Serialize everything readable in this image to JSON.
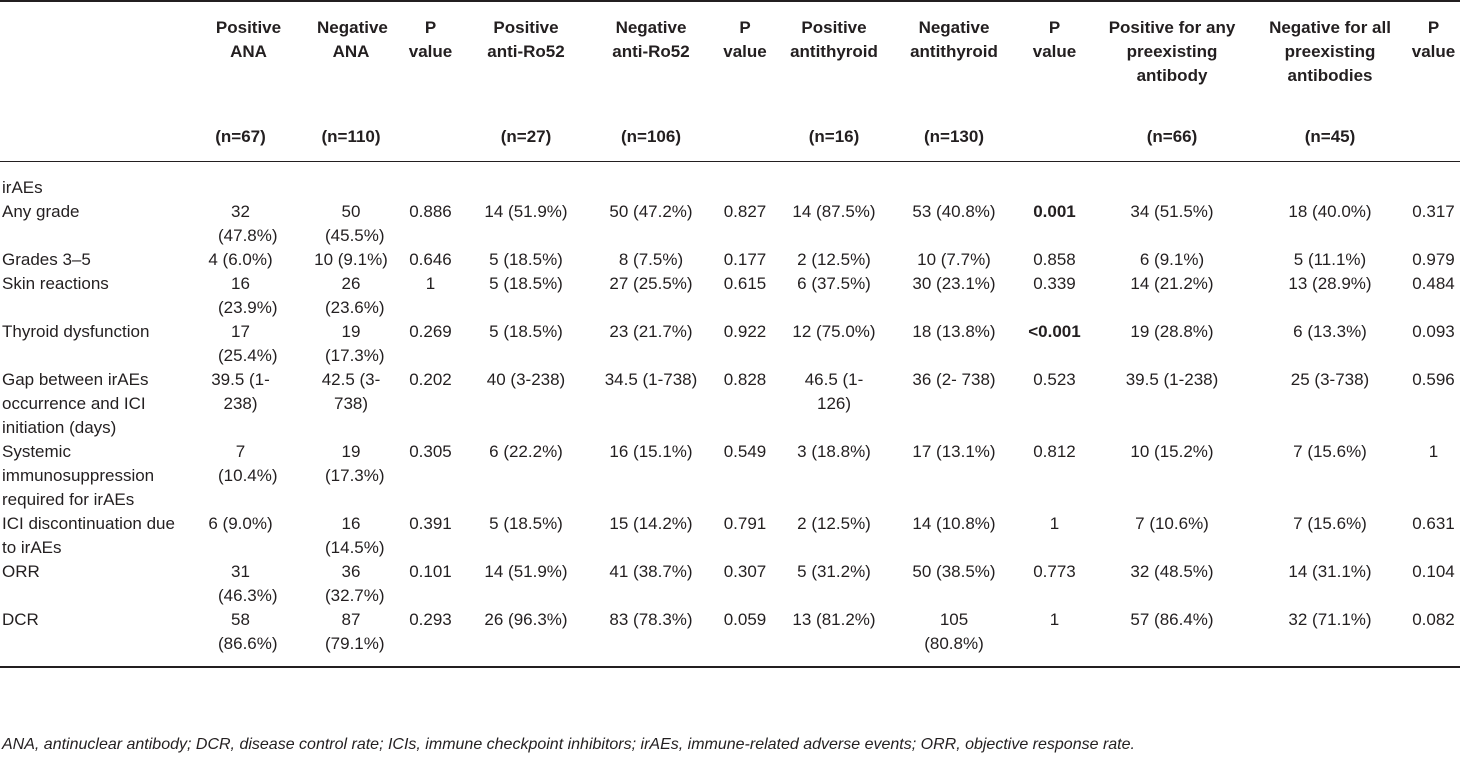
{
  "headers": [
    {
      "label": "",
      "n": ""
    },
    {
      "label": "Positive ANA",
      "n": "(n=67)"
    },
    {
      "label": "Negative ANA",
      "n": "(n=110)"
    },
    {
      "label": "P value",
      "n": ""
    },
    {
      "label": "Positive anti-Ro52",
      "n": "(n=27)"
    },
    {
      "label": "Negative anti-Ro52",
      "n": "(n=106)"
    },
    {
      "label": "P value",
      "n": ""
    },
    {
      "label": "Positive antithyroid",
      "n": "(n=16)"
    },
    {
      "label": "Negative antithyroid",
      "n": "(n=130)"
    },
    {
      "label": "P value",
      "n": ""
    },
    {
      "label": "Positive for any preexisting antibody",
      "n": "(n=66)"
    },
    {
      "label": "Negative for all preexisting antibodies",
      "n": "(n=45)"
    },
    {
      "label": "P value",
      "n": ""
    }
  ],
  "section_label": "irAEs",
  "rows": [
    {
      "label": "Any grade",
      "cells": [
        "32 (47.8%)",
        "50 (45.5%)",
        "0.886",
        "14 (51.9%)",
        "50 (47.2%)",
        "0.827",
        "14 (87.5%)",
        "53 (40.8%)",
        "0.001",
        "34 (51.5%)",
        "18 (40.0%)",
        "0.317"
      ]
    },
    {
      "label": "Grades 3–5",
      "cells": [
        "4 (6.0%)",
        "10 (9.1%)",
        "0.646",
        "5 (18.5%)",
        "8 (7.5%)",
        "0.177",
        "2 (12.5%)",
        "10 (7.7%)",
        "0.858",
        "6 (9.1%)",
        "5 (11.1%)",
        "0.979"
      ]
    },
    {
      "label": "Skin reactions",
      "cells": [
        "16 (23.9%)",
        "26 (23.6%)",
        "1",
        "5 (18.5%)",
        "27 (25.5%)",
        "0.615",
        "6 (37.5%)",
        "30 (23.1%)",
        "0.339",
        "14 (21.2%)",
        "13 (28.9%)",
        "0.484"
      ]
    },
    {
      "label": "Thyroid dysfunction",
      "cells": [
        "17 (25.4%)",
        "19 (17.3%)",
        "0.269",
        "5 (18.5%)",
        "23 (21.7%)",
        "0.922",
        "12 (75.0%)",
        "18 (13.8%)",
        "<0.001",
        "19 (28.8%)",
        "6 (13.3%)",
        "0.093"
      ]
    },
    {
      "label": "Gap between irAEs occurrence and ICI initiation (days)",
      "cells": [
        "39.5 (1-238)",
        "42.5 (3-738)",
        "0.202",
        "40 (3-238)",
        "34.5 (1-738)",
        "0.828",
        "46.5 (1- 126)",
        "36 (2- 738)",
        "0.523",
        "39.5 (1-238)",
        "25 (3-738)",
        "0.596"
      ]
    },
    {
      "label": "Systemic immunosuppression required for irAEs",
      "cells": [
        "7 (10.4%)",
        "19 (17.3%)",
        "0.305",
        "6 (22.2%)",
        "16 (15.1%)",
        "0.549",
        "3 (18.8%)",
        "17 (13.1%)",
        "0.812",
        "10 (15.2%)",
        "7 (15.6%)",
        "1"
      ]
    },
    {
      "label": "ICI discontinuation due to irAEs",
      "cells": [
        "6 (9.0%)",
        "16 (14.5%)",
        "0.391",
        "5 (18.5%)",
        "15 (14.2%)",
        "0.791",
        "2 (12.5%)",
        "14 (10.8%)",
        "1",
        "7 (10.6%)",
        "7 (15.6%)",
        "0.631"
      ]
    },
    {
      "label": "ORR",
      "cells": [
        "31 (46.3%)",
        "36 (32.7%)",
        "0.101",
        "14 (51.9%)",
        "41 (38.7%)",
        "0.307",
        "5 (31.2%)",
        "50 (38.5%)",
        "0.773",
        "32 (48.5%)",
        "14 (31.1%)",
        "0.104"
      ]
    },
    {
      "label": "DCR",
      "cells": [
        "58 (86.6%)",
        "87 (79.1%)",
        "0.293",
        "26 (96.3%)",
        "83 (78.3%)",
        "0.059",
        "13 (81.2%)",
        "105 (80.8%)",
        "1",
        "57 (86.4%)",
        "32 (71.1%)",
        "0.082"
      ]
    }
  ],
  "footnote": "ANA, antinuclear antibody; DCR, disease control rate; ICIs, immune checkpoint inhibitors; irAEs, immune-related adverse events; ORR, objective response rate."
}
